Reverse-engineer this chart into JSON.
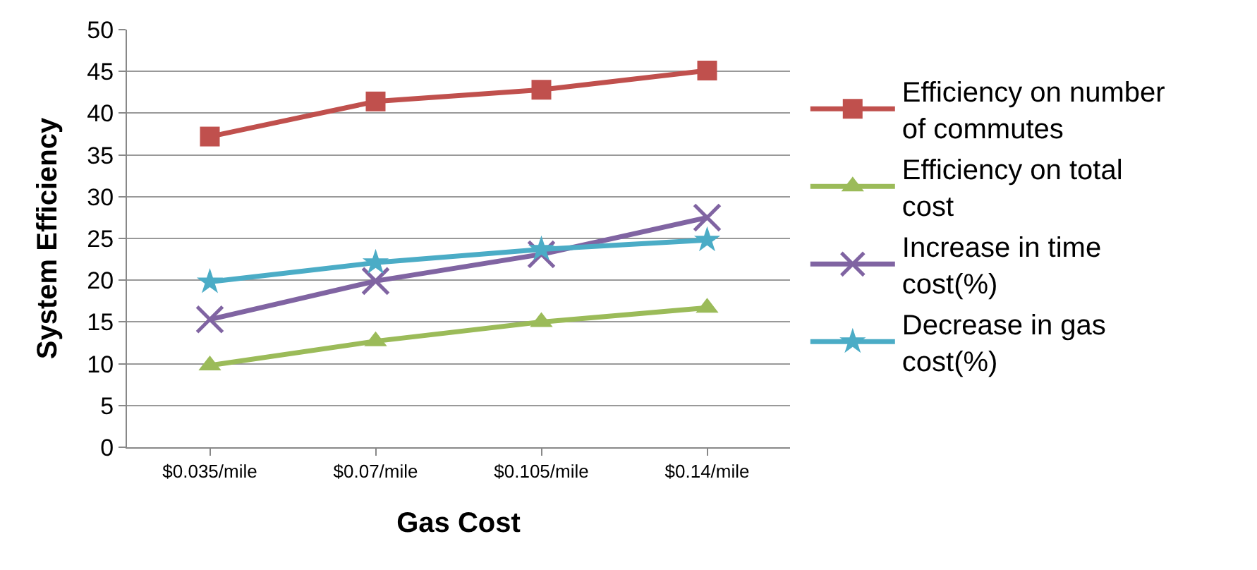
{
  "chart_data": {
    "type": "line",
    "xlabel": "Gas Cost",
    "ylabel": "System Efficiency",
    "categories": [
      "$0.035/mile",
      "$0.07/mile",
      "$0.105/mile",
      "$0.14/mile"
    ],
    "series": [
      {
        "name": "Efficiency on number of commutes",
        "color": "#c0504d",
        "marker": "square",
        "values": [
          37.2,
          41.4,
          42.8,
          45.1
        ]
      },
      {
        "name": "Efficiency on total cost",
        "color": "#9bbb59",
        "marker": "triangle",
        "values": [
          9.8,
          12.7,
          15.0,
          16.7
        ]
      },
      {
        "name": "Increase in time cost(%)",
        "color": "#8064a2",
        "marker": "cross",
        "values": [
          15.3,
          19.9,
          23.1,
          27.5
        ]
      },
      {
        "name": "Decrease in gas cost(%)",
        "color": "#4bacc6",
        "marker": "star",
        "values": [
          19.8,
          22.1,
          23.7,
          24.8
        ]
      }
    ],
    "ylim": [
      0,
      50
    ],
    "yticks": [
      0,
      5,
      10,
      15,
      20,
      25,
      30,
      35,
      40,
      45,
      50
    ],
    "grid": "y",
    "legend": "right",
    "line_style": "solid"
  }
}
